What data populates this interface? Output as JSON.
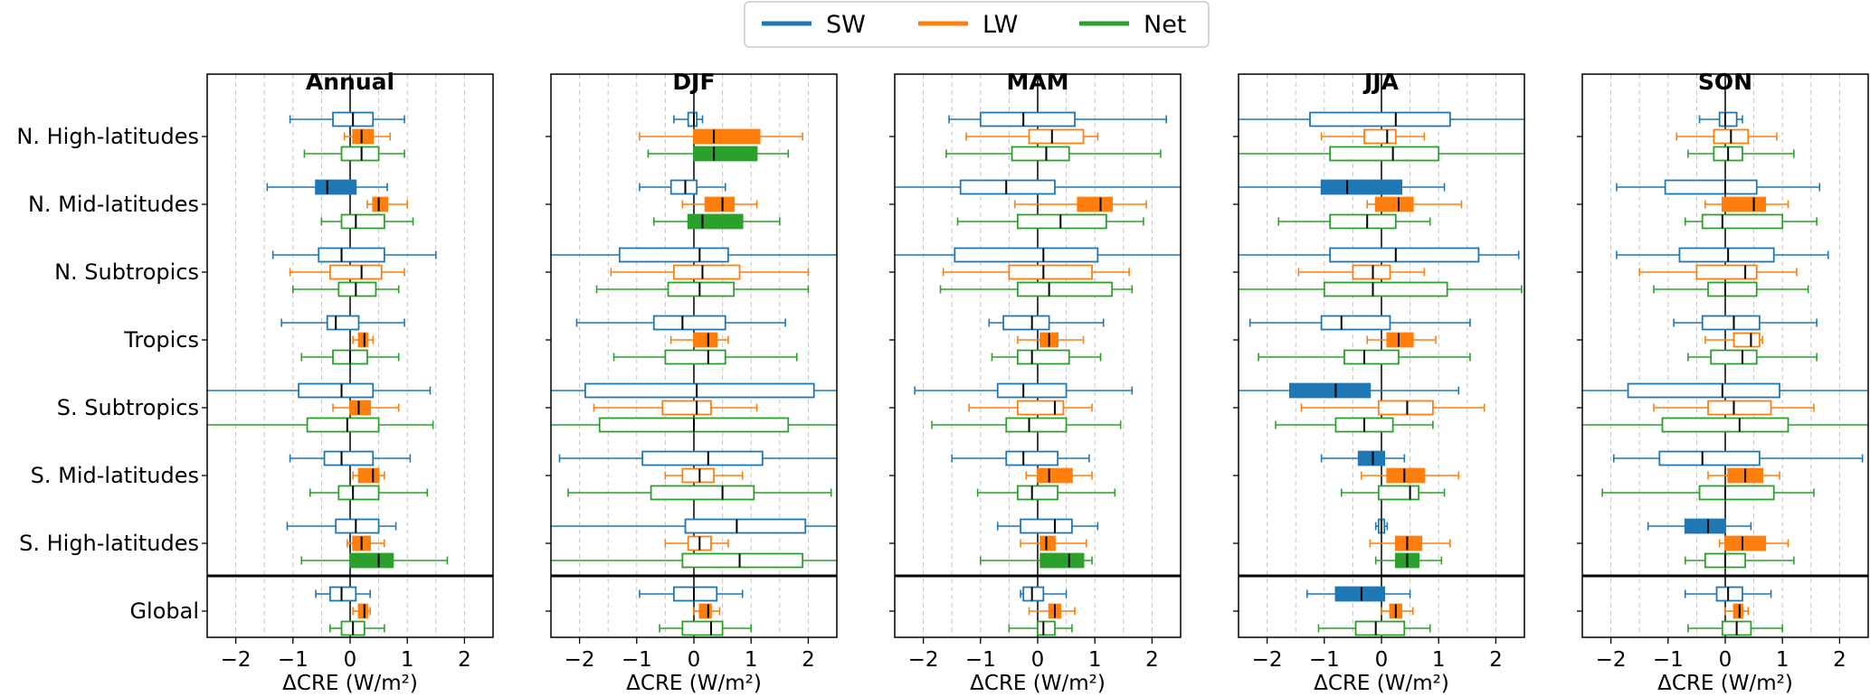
{
  "chart_data": {
    "type": "box",
    "xlabel": "ΔCRE (W/m²)",
    "xlim": [
      -2.5,
      2.5
    ],
    "xticks": [
      -2,
      -1,
      0,
      1,
      2
    ],
    "xtick_labels": [
      "−2",
      "−1",
      "0",
      "1",
      "2"
    ],
    "regions": [
      "N. High-latitudes",
      "N. Mid-latitudes",
      "N. Subtropics",
      "Tropics",
      "S. Subtropics",
      "S. Mid-latitudes",
      "S. High-latitudes",
      "Global"
    ],
    "legend": [
      {
        "name": "SW",
        "color": "#1f77b4"
      },
      {
        "name": "LW",
        "color": "#ff7f0e"
      },
      {
        "name": "Net",
        "color": "#2ca02c"
      }
    ],
    "boxes_format": "per region: [SW, LW, Net], each [whisker_low, q1, median, q3, whisker_high, filled(1=significant)]",
    "panels": [
      {
        "title": "Annual",
        "boxes": [
          [
            [
              -1.05,
              -0.3,
              0.05,
              0.4,
              0.95,
              0
            ],
            [
              -0.1,
              0.05,
              0.2,
              0.4,
              0.7,
              1
            ],
            [
              -0.8,
              -0.15,
              0.2,
              0.5,
              0.95,
              0
            ]
          ],
          [
            [
              -1.45,
              -0.6,
              -0.4,
              0.1,
              0.65,
              1
            ],
            [
              0.3,
              0.4,
              0.5,
              0.65,
              1.0,
              1
            ],
            [
              -0.5,
              -0.15,
              0.1,
              0.6,
              1.1,
              0
            ]
          ],
          [
            [
              -1.35,
              -0.55,
              -0.15,
              0.6,
              1.5,
              0
            ],
            [
              -1.05,
              -0.35,
              0.2,
              0.55,
              0.95,
              0
            ],
            [
              -1.0,
              -0.2,
              0.1,
              0.45,
              0.85,
              0
            ]
          ],
          [
            [
              -1.2,
              -0.4,
              -0.25,
              0.15,
              0.95,
              0
            ],
            [
              0.05,
              0.15,
              0.25,
              0.3,
              0.4,
              1
            ],
            [
              -0.85,
              -0.3,
              0.0,
              0.3,
              0.85,
              0
            ]
          ],
          [
            [
              -2.5,
              -0.9,
              -0.15,
              0.4,
              1.4,
              0
            ],
            [
              -0.3,
              0.0,
              0.15,
              0.35,
              0.85,
              1
            ],
            [
              -2.5,
              -0.75,
              -0.05,
              0.5,
              1.45,
              0
            ]
          ],
          [
            [
              -1.05,
              -0.45,
              -0.15,
              0.4,
              1.05,
              0
            ],
            [
              0.05,
              0.15,
              0.4,
              0.5,
              0.6,
              1
            ],
            [
              -0.7,
              -0.2,
              0.05,
              0.5,
              1.35,
              0
            ]
          ],
          [
            [
              -1.1,
              -0.25,
              0.1,
              0.5,
              0.8,
              0
            ],
            [
              -0.05,
              0.05,
              0.2,
              0.35,
              0.6,
              1
            ],
            [
              -0.85,
              0.0,
              0.5,
              0.75,
              1.7,
              1
            ]
          ],
          [
            [
              -0.6,
              -0.35,
              -0.15,
              0.1,
              0.35,
              0
            ],
            [
              0.05,
              0.15,
              0.25,
              0.3,
              0.35,
              1
            ],
            [
              -0.35,
              -0.15,
              0.05,
              0.25,
              0.6,
              0
            ]
          ]
        ]
      },
      {
        "title": "DJF",
        "boxes": [
          [
            [
              -0.35,
              -0.1,
              0.0,
              0.05,
              0.15,
              0
            ],
            [
              -0.95,
              0.0,
              0.35,
              1.15,
              1.9,
              1
            ],
            [
              -0.8,
              0.0,
              0.35,
              1.1,
              1.65,
              1
            ]
          ],
          [
            [
              -0.95,
              -0.4,
              -0.15,
              0.05,
              0.55,
              0
            ],
            [
              -0.2,
              0.2,
              0.5,
              0.7,
              1.1,
              1
            ],
            [
              -0.7,
              -0.1,
              0.15,
              0.85,
              1.5,
              1
            ]
          ],
          [
            [
              -2.5,
              -1.3,
              0.1,
              0.6,
              2.5,
              0
            ],
            [
              -1.45,
              -0.35,
              0.15,
              0.8,
              2.0,
              0
            ],
            [
              -1.7,
              -0.45,
              0.1,
              0.7,
              2.0,
              0
            ]
          ],
          [
            [
              -2.05,
              -0.7,
              -0.2,
              0.55,
              1.6,
              0
            ],
            [
              -0.4,
              0.0,
              0.25,
              0.4,
              0.6,
              1
            ],
            [
              -1.4,
              -0.5,
              0.25,
              0.55,
              1.8,
              0
            ]
          ],
          [
            [
              -2.5,
              -1.9,
              0.05,
              2.1,
              2.5,
              0
            ],
            [
              -1.75,
              -0.55,
              0.05,
              0.3,
              1.1,
              0
            ],
            [
              -2.5,
              -1.65,
              0.0,
              1.65,
              2.5,
              0
            ]
          ],
          [
            [
              -2.35,
              -0.9,
              0.25,
              1.2,
              2.5,
              0
            ],
            [
              -0.5,
              -0.2,
              0.1,
              0.35,
              0.85,
              0
            ],
            [
              -2.2,
              -0.75,
              0.5,
              1.05,
              2.4,
              0
            ]
          ],
          [
            [
              -2.5,
              -0.15,
              0.75,
              1.95,
              2.5,
              0
            ],
            [
              -0.5,
              -0.1,
              0.1,
              0.3,
              0.6,
              0
            ],
            [
              -2.5,
              -0.2,
              0.8,
              1.9,
              2.5,
              0
            ]
          ],
          [
            [
              -0.95,
              -0.35,
              0.0,
              0.4,
              0.85,
              0
            ],
            [
              0.0,
              0.1,
              0.25,
              0.3,
              0.45,
              1
            ],
            [
              -0.6,
              -0.2,
              0.3,
              0.5,
              1.0,
              0
            ]
          ]
        ]
      },
      {
        "title": "MAM",
        "boxes": [
          [
            [
              -1.55,
              -1.0,
              -0.25,
              0.65,
              2.25,
              0
            ],
            [
              -1.25,
              -0.15,
              0.25,
              0.8,
              1.05,
              0
            ],
            [
              -1.6,
              -0.45,
              0.15,
              0.55,
              2.15,
              0
            ]
          ],
          [
            [
              -2.5,
              -1.35,
              -0.55,
              0.3,
              2.5,
              0
            ],
            [
              -0.4,
              0.7,
              1.1,
              1.3,
              1.9,
              1
            ],
            [
              -1.4,
              -0.35,
              0.4,
              1.2,
              1.85,
              0
            ]
          ],
          [
            [
              -2.5,
              -1.45,
              0.1,
              1.05,
              2.5,
              0
            ],
            [
              -1.65,
              -0.5,
              0.1,
              0.95,
              1.6,
              0
            ],
            [
              -1.7,
              -0.35,
              0.2,
              1.3,
              1.65,
              0
            ]
          ],
          [
            [
              -0.85,
              -0.6,
              -0.1,
              0.2,
              1.15,
              0
            ],
            [
              -0.35,
              0.05,
              0.2,
              0.35,
              0.8,
              1
            ],
            [
              -0.8,
              -0.35,
              -0.1,
              0.55,
              1.1,
              0
            ]
          ],
          [
            [
              -2.15,
              -0.7,
              -0.25,
              0.5,
              1.65,
              0
            ],
            [
              -1.2,
              -0.35,
              0.3,
              0.45,
              0.95,
              0
            ],
            [
              -1.85,
              -0.55,
              -0.15,
              0.5,
              1.45,
              0
            ]
          ],
          [
            [
              -1.5,
              -0.55,
              -0.25,
              0.35,
              0.9,
              0
            ],
            [
              -0.2,
              0.0,
              0.2,
              0.6,
              0.95,
              1
            ],
            [
              -1.05,
              -0.35,
              -0.1,
              0.35,
              1.35,
              0
            ]
          ],
          [
            [
              -0.7,
              -0.3,
              0.3,
              0.6,
              1.05,
              0
            ],
            [
              -0.3,
              0.05,
              0.15,
              0.3,
              0.85,
              1
            ],
            [
              -1.0,
              0.05,
              0.55,
              0.8,
              0.95,
              1
            ]
          ],
          [
            [
              -0.3,
              -0.25,
              -0.1,
              0.1,
              0.5,
              0
            ],
            [
              -0.15,
              0.2,
              0.3,
              0.4,
              0.65,
              1
            ],
            [
              -0.5,
              0.0,
              0.1,
              0.3,
              0.6,
              0
            ]
          ]
        ]
      },
      {
        "title": "JJA",
        "boxes": [
          [
            [
              -2.5,
              -1.25,
              0.25,
              1.2,
              2.5,
              0
            ],
            [
              -1.05,
              -0.3,
              0.1,
              0.25,
              0.75,
              0
            ],
            [
              -2.5,
              -0.9,
              0.2,
              1.0,
              2.5,
              0
            ]
          ],
          [
            [
              -2.5,
              -1.05,
              -0.6,
              0.35,
              1.1,
              1
            ],
            [
              -0.25,
              -0.1,
              0.3,
              0.55,
              1.4,
              1
            ],
            [
              -1.8,
              -0.9,
              -0.25,
              0.25,
              0.85,
              0
            ]
          ],
          [
            [
              -2.5,
              -0.9,
              0.25,
              1.7,
              2.4,
              0
            ],
            [
              -1.45,
              -0.5,
              -0.15,
              0.15,
              0.75,
              0
            ],
            [
              -2.5,
              -1.0,
              -0.15,
              1.15,
              2.45,
              0
            ]
          ],
          [
            [
              -2.3,
              -1.05,
              -0.7,
              0.15,
              1.55,
              0
            ],
            [
              -0.25,
              0.1,
              0.3,
              0.55,
              0.95,
              1
            ],
            [
              -2.15,
              -0.65,
              -0.3,
              0.3,
              1.55,
              0
            ]
          ],
          [
            [
              -2.5,
              -1.6,
              -0.8,
              -0.2,
              1.35,
              1
            ],
            [
              -1.4,
              -0.05,
              0.45,
              0.9,
              1.8,
              0
            ],
            [
              -1.85,
              -0.8,
              -0.3,
              0.2,
              0.9,
              0
            ]
          ],
          [
            [
              -1.05,
              -0.4,
              -0.15,
              0.05,
              0.4,
              1
            ],
            [
              -0.35,
              0.1,
              0.4,
              0.75,
              1.35,
              1
            ],
            [
              -0.7,
              -0.05,
              0.5,
              0.65,
              1.1,
              0
            ]
          ],
          [
            [
              -0.1,
              -0.05,
              0.0,
              0.05,
              0.1,
              0
            ],
            [
              -0.2,
              0.25,
              0.45,
              0.7,
              1.2,
              1
            ],
            [
              -0.1,
              0.25,
              0.45,
              0.65,
              1.05,
              1
            ]
          ],
          [
            [
              -1.3,
              -0.8,
              -0.35,
              0.05,
              0.5,
              1
            ],
            [
              0.0,
              0.15,
              0.25,
              0.35,
              0.55,
              1
            ],
            [
              -1.1,
              -0.45,
              -0.1,
              0.4,
              0.85,
              0
            ]
          ]
        ]
      },
      {
        "title": "SON",
        "boxes": [
          [
            [
              -0.45,
              -0.1,
              0.0,
              0.2,
              0.3,
              0
            ],
            [
              -0.85,
              -0.2,
              0.1,
              0.4,
              0.9,
              0
            ],
            [
              -0.65,
              -0.2,
              0.05,
              0.3,
              1.2,
              0
            ]
          ],
          [
            [
              -1.9,
              -1.05,
              0.0,
              0.55,
              1.65,
              0
            ],
            [
              -0.35,
              -0.05,
              0.5,
              0.7,
              1.1,
              1
            ],
            [
              -0.7,
              -0.4,
              -0.05,
              1.0,
              1.6,
              0
            ]
          ],
          [
            [
              -1.9,
              -0.8,
              0.05,
              0.85,
              1.8,
              0
            ],
            [
              -1.5,
              -0.5,
              0.35,
              0.55,
              1.25,
              0
            ],
            [
              -1.25,
              -0.3,
              0.0,
              0.55,
              1.45,
              0
            ]
          ],
          [
            [
              -0.9,
              -0.4,
              0.15,
              0.6,
              1.6,
              0
            ],
            [
              -0.35,
              0.15,
              0.45,
              0.6,
              0.65,
              0
            ],
            [
              -0.65,
              -0.25,
              0.3,
              0.55,
              1.6,
              0
            ]
          ],
          [
            [
              -2.5,
              -1.7,
              -0.05,
              0.95,
              2.5,
              0
            ],
            [
              -1.25,
              -0.3,
              0.15,
              0.8,
              1.55,
              0
            ],
            [
              -2.5,
              -1.1,
              0.25,
              1.1,
              2.5,
              0
            ]
          ],
          [
            [
              -1.95,
              -1.15,
              -0.4,
              0.6,
              2.4,
              0
            ],
            [
              -0.3,
              0.05,
              0.35,
              0.65,
              0.95,
              1
            ],
            [
              -2.15,
              -0.45,
              0.0,
              0.85,
              1.55,
              0
            ]
          ],
          [
            [
              -1.35,
              -0.7,
              -0.3,
              0.0,
              0.45,
              1
            ],
            [
              -0.1,
              0.0,
              0.3,
              0.7,
              1.1,
              1
            ],
            [
              -0.7,
              -0.35,
              0.0,
              0.35,
              1.2,
              0
            ]
          ],
          [
            [
              -0.7,
              -0.15,
              0.05,
              0.3,
              0.8,
              0
            ],
            [
              0.0,
              0.15,
              0.25,
              0.3,
              0.4,
              1
            ],
            [
              -0.65,
              -0.05,
              0.2,
              0.45,
              1.0,
              0
            ]
          ]
        ]
      }
    ]
  }
}
